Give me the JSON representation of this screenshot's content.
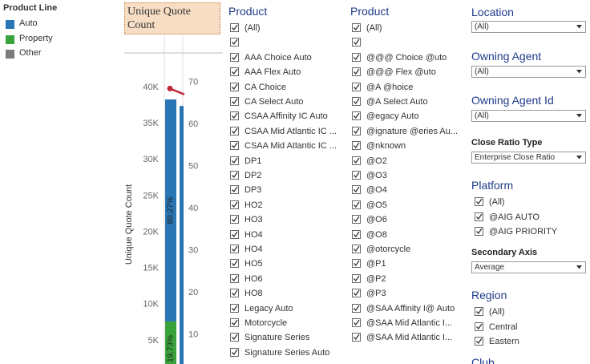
{
  "legend": {
    "title": "Product Line",
    "items": [
      {
        "label": "Auto",
        "color": "#2a75b3"
      },
      {
        "label": "Property",
        "color": "#3aa23a"
      },
      {
        "label": "Other",
        "color": "#7b7b7b"
      }
    ]
  },
  "chart": {
    "header": "Unique Quote Count",
    "y_axis_label": "Unique Quote Count",
    "yticks": [
      {
        "value": 5000,
        "label": "5K"
      },
      {
        "value": 10000,
        "label": "10K"
      },
      {
        "value": 15000,
        "label": "15K"
      },
      {
        "value": 20000,
        "label": "20K"
      },
      {
        "value": 25000,
        "label": "25K"
      },
      {
        "value": 30000,
        "label": "30K"
      },
      {
        "value": 35000,
        "label": "35K"
      },
      {
        "value": 40000,
        "label": "40K"
      }
    ],
    "y2ticks": [
      10,
      20,
      30,
      40,
      50,
      60,
      70
    ],
    "bars": [
      {
        "auto": 30660,
        "auto_label": "80.27%",
        "property": 7540,
        "property_label": "19.73%"
      },
      {
        "auto": 37300
      }
    ],
    "line": [
      68.3,
      66.9
    ],
    "line_color": "#c0283a"
  },
  "product_1": {
    "title": "Product",
    "items": [
      "(All)",
      "AAA Choice Auto",
      "AAA Flex Auto",
      "CA Choice",
      "CA Select Auto",
      "CSAA Affinity IC Auto",
      "CSAA Mid Atlantic IC ...",
      "CSAA Mid Atlantic IC ...",
      "DP1",
      "DP2",
      "DP3",
      "HO2",
      "HO3",
      "HO4",
      "HO4",
      "HO5",
      "HO6",
      "HO8",
      "Legacy Auto",
      "Motorcycle",
      "Signature Series",
      "Signature Series Auto"
    ]
  },
  "product_2": {
    "title": "Product",
    "items": [
      "(All)",
      "@@@ Choice @uto",
      "@@@ Flex @uto",
      "@A @hoice",
      "@A Select Auto",
      "@egacy Auto",
      "@ignature @eries Au...",
      "@nknown",
      "@O2",
      "@O3",
      "@O4",
      "@O5",
      "@O6",
      "@O8",
      "@otorcycle",
      "@P1",
      "@P2",
      "@P3",
      "@SAA Affinity I@ Auto",
      "@SAA Mid Atlantic I...",
      "@SAA Mid Atlantic I..."
    ]
  },
  "filters": {
    "location": {
      "title": "Location",
      "value": "(All)"
    },
    "owning_agent": {
      "title": "Owning Agent",
      "value": "(All)"
    },
    "owning_agent_id": {
      "title": "Owning Agent Id",
      "value": "(All)"
    },
    "close_ratio_type": {
      "title": "Close Ratio Type",
      "value": "Enterprise Close Ratio"
    },
    "platform": {
      "title": "Platform",
      "items": [
        "(All)",
        "@AIG AUTO",
        "@AIG PRIORITY"
      ]
    },
    "secondary_axis": {
      "title": "Secondary Axis",
      "value": "Average"
    },
    "region": {
      "title": "Region",
      "items": [
        "(All)",
        "Central",
        "Eastern"
      ]
    },
    "club": {
      "title": "Club"
    }
  }
}
